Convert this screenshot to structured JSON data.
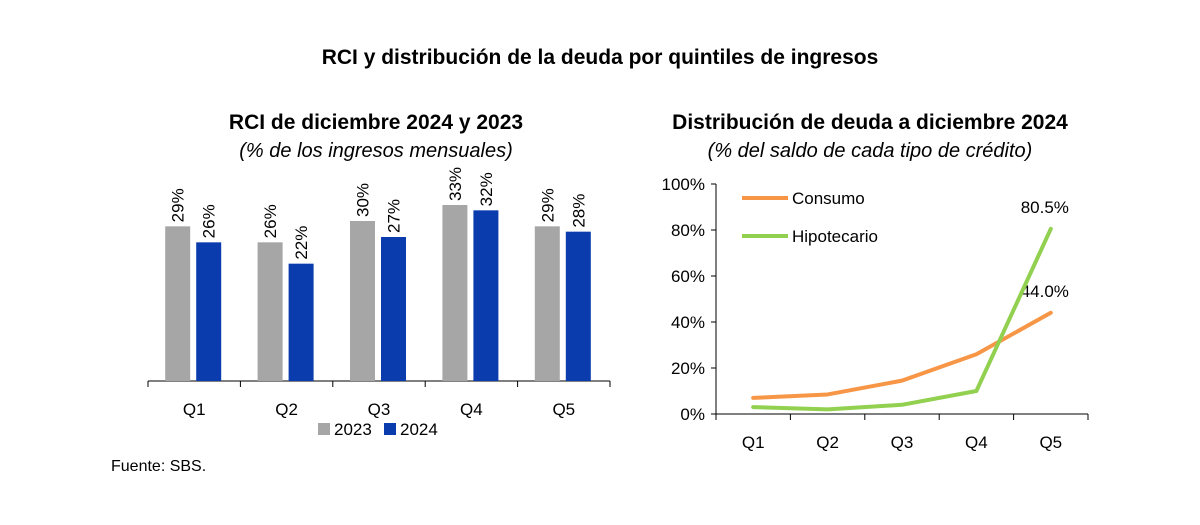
{
  "title": "RCI y distribución de la deuda por quintiles de ingresos",
  "source": "Fuente: SBS.",
  "chart_data": [
    {
      "type": "bar",
      "title": "RCI de diciembre 2024 y 2023",
      "subtitle": "(% de los ingresos mensuales)",
      "categories": [
        "Q1",
        "Q2",
        "Q3",
        "Q4",
        "Q5"
      ],
      "series": [
        {
          "name": "2023",
          "values": [
            29,
            26,
            30,
            33,
            29
          ],
          "labels": [
            "29%",
            "26%",
            "30%",
            "33%",
            "29%"
          ],
          "color": "#a6a6a6"
        },
        {
          "name": "2024",
          "values": [
            26,
            22,
            27,
            32,
            28
          ],
          "labels": [
            "26%",
            "22%",
            "27%",
            "32%",
            "28%"
          ],
          "color": "#0a3cad"
        }
      ],
      "ylim": [
        0,
        38
      ],
      "legend": "bottom"
    },
    {
      "type": "line",
      "title": "Distribución de deuda a diciembre 2024",
      "subtitle": "(% del saldo de cada tipo de crédito)",
      "categories": [
        "Q1",
        "Q2",
        "Q3",
        "Q4",
        "Q5"
      ],
      "yticks": [
        "0%",
        "20%",
        "40%",
        "60%",
        "80%",
        "100%"
      ],
      "ylim": [
        0,
        100
      ],
      "series": [
        {
          "name": "Consumo",
          "values": [
            7,
            8.5,
            14.5,
            26,
            44.0
          ],
          "end_label": "44.0%",
          "color": "#f79646"
        },
        {
          "name": "Hipotecario",
          "values": [
            3,
            2,
            4,
            10,
            80.5
          ],
          "end_label": "80.5%",
          "color": "#92d050"
        }
      ],
      "legend": "top-left"
    }
  ]
}
